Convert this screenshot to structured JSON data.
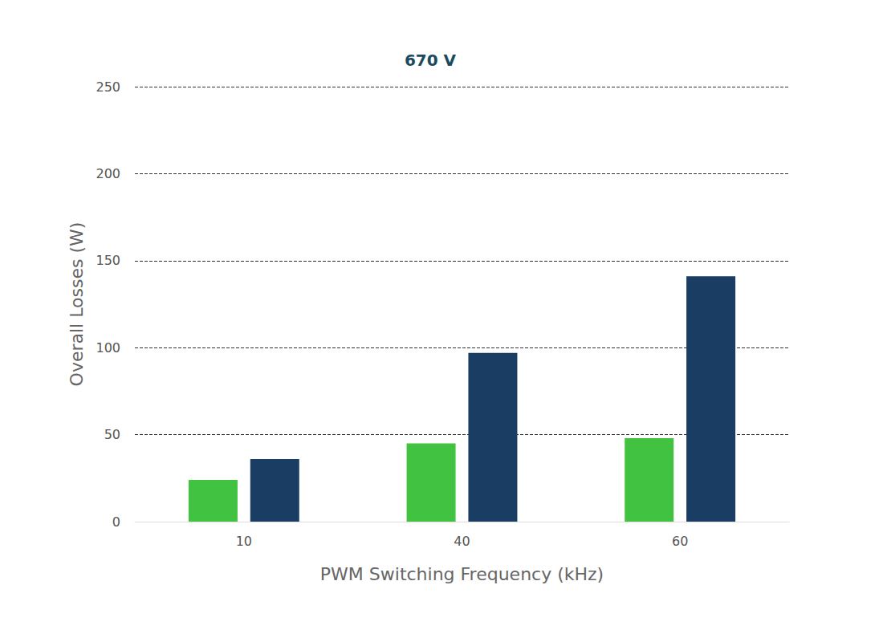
{
  "chart_data": {
    "type": "bar",
    "title": "670 V",
    "x_label": "PWM Switching Frequency (kHz)",
    "y_label": "Overall Losses (W)",
    "categories": [
      "10",
      "40",
      "60"
    ],
    "series": [
      {
        "color": "#41c241",
        "values": [
          24,
          45,
          48
        ]
      },
      {
        "color": "#193d63",
        "values": [
          36,
          97,
          141
        ]
      }
    ],
    "ylim": [
      0,
      250
    ],
    "yticks": [
      0,
      50,
      100,
      150,
      200,
      250
    ],
    "grid": true
  }
}
